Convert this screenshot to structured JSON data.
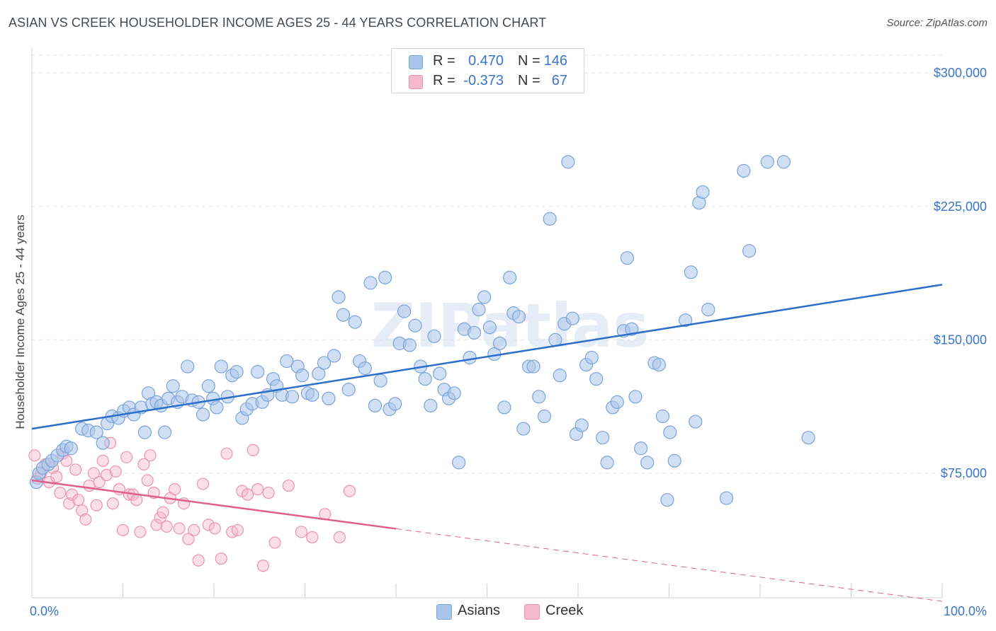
{
  "header": {
    "title": "ASIAN VS CREEK HOUSEHOLDER INCOME AGES 25 - 44 YEARS CORRELATION CHART",
    "source": "Source: ZipAtlas.com"
  },
  "legend": {
    "rows": [
      {
        "r_label": "R =",
        "r_value": "0.470",
        "n_label": "N =",
        "n_value": "146"
      },
      {
        "r_label": "R =",
        "r_value": "-0.373",
        "n_label": "N =",
        "n_value": "67"
      }
    ],
    "bottom": [
      "Asians",
      "Creek"
    ]
  },
  "colors": {
    "asians_fill": "#a9c5ea",
    "asians_stroke": "#7aa4d8",
    "asians_line": "#2b6fcb",
    "creek_fill": "#f5b8cc",
    "creek_stroke": "#ec93b0",
    "creek_line": "#e0608b",
    "axis_text": "#3a74c6",
    "grid": "#e3e3e3"
  },
  "watermark": "ZIPatlas",
  "chart_data": {
    "type": "scatter",
    "title": "ASIAN VS CREEK HOUSEHOLDER INCOME AGES 25 - 44 YEARS CORRELATION CHART",
    "xlabel": "",
    "ylabel": "Householder Income Ages 25 - 44 years",
    "xlim": [
      0,
      100
    ],
    "ylim": [
      5000,
      310000
    ],
    "x_tick_labels": [
      "0.0%",
      "100.0%"
    ],
    "y_ticks": [
      75000,
      150000,
      225000,
      300000
    ],
    "y_tick_labels": [
      "$75,000",
      "$150,000",
      "$225,000",
      "$300,000"
    ],
    "grid": true,
    "legend_position": "top-center",
    "series": [
      {
        "name": "Asians",
        "r": 0.47,
        "n": 146,
        "trend": {
          "x": [
            0,
            100
          ],
          "y": [
            100000,
            181000
          ],
          "dashed_from": null
        },
        "points": [
          [
            0.5,
            70000
          ],
          [
            0.8,
            75000
          ],
          [
            1.2,
            78000
          ],
          [
            1.8,
            80000
          ],
          [
            2.2,
            82000
          ],
          [
            2.8,
            85000
          ],
          [
            3.4,
            88000
          ],
          [
            3.8,
            90000
          ],
          [
            4.3,
            89000
          ],
          [
            5.5,
            100000
          ],
          [
            6.2,
            99000
          ],
          [
            7.1,
            98000
          ],
          [
            7.8,
            92000
          ],
          [
            8.3,
            103000
          ],
          [
            8.8,
            107000
          ],
          [
            9.5,
            106000
          ],
          [
            10.1,
            110000
          ],
          [
            10.7,
            112000
          ],
          [
            11.2,
            108000
          ],
          [
            12.0,
            112000
          ],
          [
            12.4,
            98000
          ],
          [
            12.8,
            120000
          ],
          [
            13.2,
            114000
          ],
          [
            13.7,
            115000
          ],
          [
            14.2,
            113000
          ],
          [
            14.6,
            98000
          ],
          [
            15.0,
            117000
          ],
          [
            15.5,
            124000
          ],
          [
            16.0,
            115000
          ],
          [
            16.5,
            118000
          ],
          [
            17.1,
            135000
          ],
          [
            17.6,
            116000
          ],
          [
            18.3,
            115000
          ],
          [
            18.8,
            108000
          ],
          [
            19.4,
            124000
          ],
          [
            19.9,
            117000
          ],
          [
            20.3,
            112000
          ],
          [
            20.8,
            135000
          ],
          [
            21.5,
            118000
          ],
          [
            22.0,
            130000
          ],
          [
            22.5,
            132000
          ],
          [
            23.1,
            106000
          ],
          [
            23.6,
            111000
          ],
          [
            24.2,
            114000
          ],
          [
            24.8,
            132000
          ],
          [
            25.3,
            115000
          ],
          [
            25.9,
            119000
          ],
          [
            26.5,
            128000
          ],
          [
            26.9,
            124000
          ],
          [
            27.5,
            119000
          ],
          [
            28.0,
            138000
          ],
          [
            28.6,
            118000
          ],
          [
            29.2,
            135000
          ],
          [
            29.7,
            130000
          ],
          [
            30.3,
            120000
          ],
          [
            30.8,
            119000
          ],
          [
            31.5,
            131000
          ],
          [
            32.1,
            137000
          ],
          [
            32.6,
            117000
          ],
          [
            33.2,
            141000
          ],
          [
            33.7,
            174000
          ],
          [
            34.2,
            164000
          ],
          [
            34.8,
            122000
          ],
          [
            35.5,
            160000
          ],
          [
            36.0,
            138000
          ],
          [
            36.6,
            134000
          ],
          [
            37.2,
            182000
          ],
          [
            37.7,
            113000
          ],
          [
            38.3,
            127000
          ],
          [
            38.8,
            185000
          ],
          [
            39.3,
            111000
          ],
          [
            39.9,
            114000
          ],
          [
            40.4,
            148000
          ],
          [
            40.9,
            166000
          ],
          [
            41.5,
            147000
          ],
          [
            42.1,
            158000
          ],
          [
            42.7,
            135000
          ],
          [
            43.2,
            128000
          ],
          [
            43.8,
            113000
          ],
          [
            44.2,
            152000
          ],
          [
            44.8,
            131000
          ],
          [
            45.3,
            122000
          ],
          [
            45.8,
            117000
          ],
          [
            46.4,
            120000
          ],
          [
            46.9,
            81000
          ],
          [
            47.5,
            156000
          ],
          [
            48.1,
            140000
          ],
          [
            48.6,
            154000
          ],
          [
            49.1,
            167000
          ],
          [
            49.7,
            174000
          ],
          [
            50.3,
            157000
          ],
          [
            50.8,
            142000
          ],
          [
            51.4,
            148000
          ],
          [
            51.9,
            112000
          ],
          [
            52.5,
            185000
          ],
          [
            52.9,
            165000
          ],
          [
            53.5,
            163000
          ],
          [
            54.0,
            100000
          ],
          [
            54.6,
            135000
          ],
          [
            55.1,
            135000
          ],
          [
            55.7,
            118000
          ],
          [
            56.3,
            107000
          ],
          [
            56.9,
            218000
          ],
          [
            57.5,
            150000
          ],
          [
            58.0,
            130000
          ],
          [
            58.5,
            159000
          ],
          [
            58.9,
            250000
          ],
          [
            59.4,
            162000
          ],
          [
            59.8,
            97000
          ],
          [
            60.4,
            102000
          ],
          [
            60.9,
            136000
          ],
          [
            61.5,
            140000
          ],
          [
            62.0,
            128000
          ],
          [
            62.7,
            95000
          ],
          [
            63.2,
            81000
          ],
          [
            63.8,
            112000
          ],
          [
            64.3,
            115000
          ],
          [
            65.0,
            155000
          ],
          [
            65.4,
            196000
          ],
          [
            65.9,
            156000
          ],
          [
            66.3,
            118000
          ],
          [
            66.9,
            89000
          ],
          [
            67.6,
            81000
          ],
          [
            68.4,
            137000
          ],
          [
            68.9,
            136000
          ],
          [
            69.3,
            107000
          ],
          [
            69.8,
            60000
          ],
          [
            70.1,
            98000
          ],
          [
            70.6,
            82000
          ],
          [
            71.8,
            161000
          ],
          [
            72.4,
            188000
          ],
          [
            72.9,
            104000
          ],
          [
            73.3,
            227000
          ],
          [
            73.7,
            233000
          ],
          [
            74.3,
            167000
          ],
          [
            76.3,
            61000
          ],
          [
            78.2,
            245000
          ],
          [
            78.8,
            200000
          ],
          [
            80.8,
            250000
          ],
          [
            82.6,
            250000
          ],
          [
            85.3,
            95000
          ]
        ]
      },
      {
        "name": "Creek",
        "r": -0.373,
        "n": 67,
        "trend": {
          "x": [
            0,
            100
          ],
          "y": [
            71000,
            3000
          ],
          "dashed_from": 40
        },
        "points": [
          [
            0.3,
            85000
          ],
          [
            0.6,
            72000
          ],
          [
            1.0,
            75000
          ],
          [
            1.5,
            80000
          ],
          [
            1.9,
            70000
          ],
          [
            2.3,
            78000
          ],
          [
            2.7,
            73000
          ],
          [
            3.1,
            64000
          ],
          [
            3.4,
            86000
          ],
          [
            3.8,
            82000
          ],
          [
            4.1,
            58000
          ],
          [
            4.4,
            63000
          ],
          [
            4.8,
            77000
          ],
          [
            5.1,
            60000
          ],
          [
            5.5,
            54000
          ],
          [
            5.9,
            49000
          ],
          [
            6.3,
            68000
          ],
          [
            6.8,
            75000
          ],
          [
            7.1,
            57000
          ],
          [
            7.4,
            70000
          ],
          [
            7.8,
            82000
          ],
          [
            8.2,
            74000
          ],
          [
            8.6,
            92000
          ],
          [
            8.9,
            58000
          ],
          [
            9.2,
            76000
          ],
          [
            9.6,
            66000
          ],
          [
            10.0,
            43000
          ],
          [
            10.4,
            84000
          ],
          [
            10.7,
            63000
          ],
          [
            11.1,
            63000
          ],
          [
            11.5,
            60000
          ],
          [
            11.9,
            42000
          ],
          [
            12.3,
            80000
          ],
          [
            12.7,
            71000
          ],
          [
            13.0,
            85000
          ],
          [
            13.4,
            64000
          ],
          [
            13.7,
            46000
          ],
          [
            14.1,
            50000
          ],
          [
            14.4,
            53000
          ],
          [
            14.8,
            45000
          ],
          [
            15.2,
            61000
          ],
          [
            15.7,
            66000
          ],
          [
            16.2,
            44000
          ],
          [
            16.7,
            58000
          ],
          [
            17.2,
            38000
          ],
          [
            17.8,
            43000
          ],
          [
            18.3,
            26000
          ],
          [
            18.8,
            69000
          ],
          [
            19.4,
            46000
          ],
          [
            20.1,
            44000
          ],
          [
            20.8,
            27000
          ],
          [
            21.4,
            86000
          ],
          [
            22.0,
            42000
          ],
          [
            22.6,
            43000
          ],
          [
            23.1,
            65000
          ],
          [
            23.7,
            63000
          ],
          [
            24.3,
            88000
          ],
          [
            24.8,
            66000
          ],
          [
            25.4,
            23000
          ],
          [
            26.0,
            64000
          ],
          [
            26.7,
            36000
          ],
          [
            28.2,
            68000
          ],
          [
            29.6,
            42000
          ],
          [
            30.8,
            39000
          ],
          [
            32.2,
            52000
          ],
          [
            33.8,
            39000
          ],
          [
            34.9,
            65000
          ]
        ]
      }
    ]
  }
}
